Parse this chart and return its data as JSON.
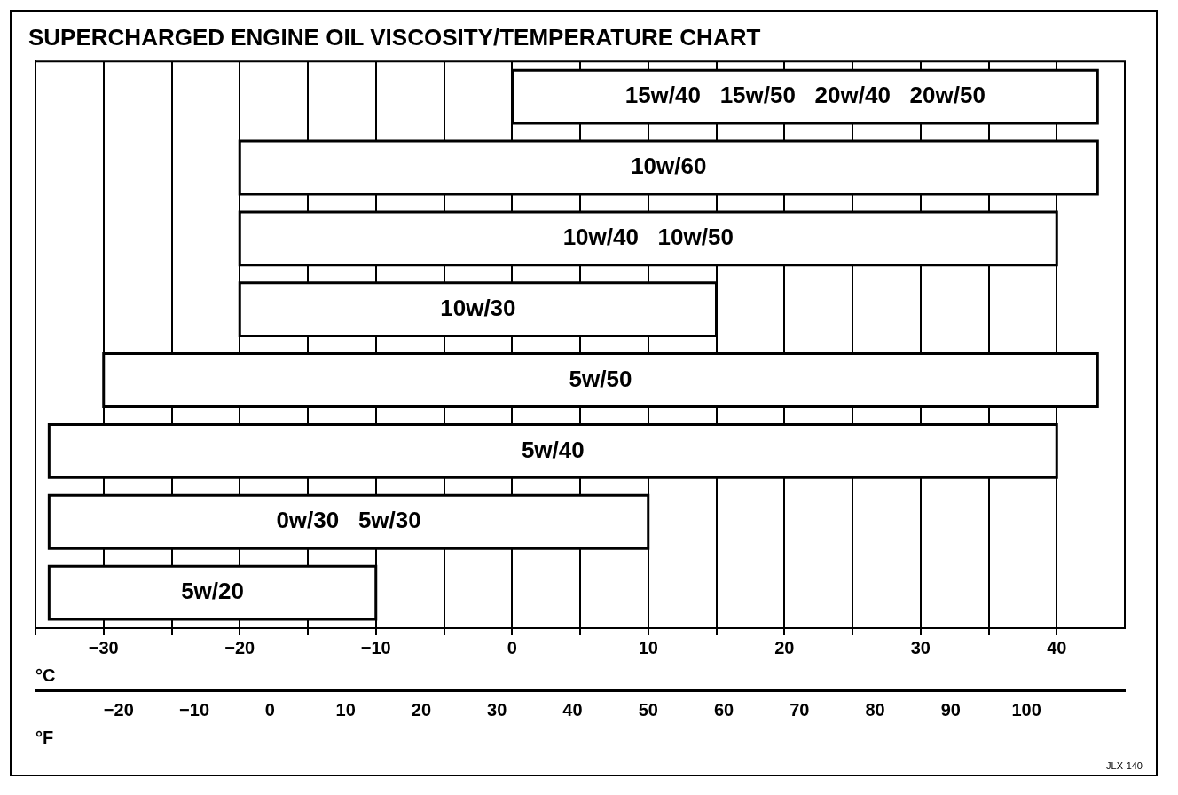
{
  "chart_data": {
    "type": "bar",
    "orientation": "horizontal",
    "title": "SUPERCHARGED ENGINE OIL VISCOSITY/TEMPERATURE CHART",
    "categories": [
      "15w/40   15w/50   20w/40   20w/50",
      "10w/60",
      "10w/40   10w/50",
      "10w/30",
      "5w/50",
      "5w/40",
      "0w/30   5w/30",
      "5w/20"
    ],
    "base": [
      0,
      -20,
      -20,
      -20,
      -30,
      -34,
      -34,
      -34
    ],
    "values": [
      43,
      63,
      60,
      35,
      73,
      74,
      44,
      24
    ],
    "color": "#ffffff",
    "xlabel": "°C",
    "x2label": "°F",
    "xlim": [
      -35,
      45
    ],
    "xticks": [
      {
        "value": -35,
        "label": null
      },
      -30,
      {
        "value": -25,
        "label": null
      },
      -20,
      {
        "value": -15,
        "label": null
      },
      -10,
      {
        "value": -5,
        "label": null
      },
      0,
      {
        "value": 5,
        "label": null
      },
      10,
      {
        "value": 15,
        "label": null
      },
      20,
      {
        "value": 25,
        "label": null
      },
      30,
      {
        "value": 35,
        "label": null
      },
      40
    ],
    "x2lim": [
      -31,
      113
    ],
    "x2ticks": [
      -20,
      -10,
      0,
      10,
      20,
      30,
      40,
      50,
      60,
      70,
      80,
      90,
      100
    ],
    "grid": "x",
    "legend": false,
    "tick_labels": "x",
    "annotations": [
      "JLX-140"
    ]
  }
}
